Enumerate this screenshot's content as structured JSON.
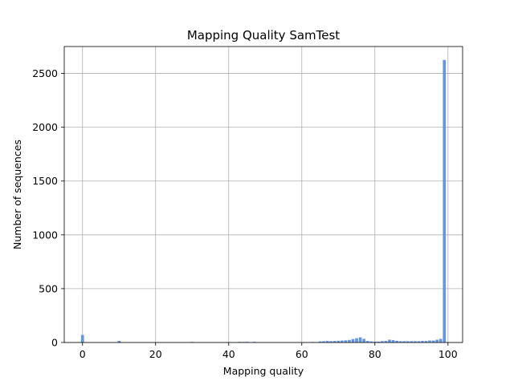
{
  "chart_data": {
    "type": "bar",
    "title": "Mapping Quality SamTest",
    "xlabel": "Mapping quality",
    "ylabel": "Number of sequences",
    "xlim": [
      -5,
      104
    ],
    "ylim": [
      0,
      2750
    ],
    "grid": true,
    "bar_color": "#6495ed",
    "xticks": [
      0,
      20,
      40,
      60,
      80,
      100
    ],
    "yticks": [
      0,
      500,
      1000,
      1500,
      2000,
      2500
    ],
    "x": [
      0,
      10,
      30,
      43,
      44,
      45,
      47,
      63,
      65,
      66,
      67,
      68,
      69,
      70,
      71,
      72,
      73,
      74,
      75,
      76,
      77,
      78,
      79,
      80,
      81,
      82,
      83,
      84,
      85,
      86,
      87,
      88,
      89,
      90,
      91,
      92,
      93,
      94,
      95,
      96,
      97,
      98,
      99
    ],
    "values": [
      70,
      15,
      5,
      6,
      5,
      6,
      6,
      5,
      10,
      12,
      14,
      12,
      14,
      16,
      18,
      20,
      24,
      32,
      40,
      48,
      34,
      14,
      10,
      8,
      8,
      12,
      14,
      26,
      22,
      16,
      12,
      12,
      12,
      12,
      12,
      12,
      14,
      14,
      18,
      18,
      26,
      34,
      2625
    ]
  }
}
